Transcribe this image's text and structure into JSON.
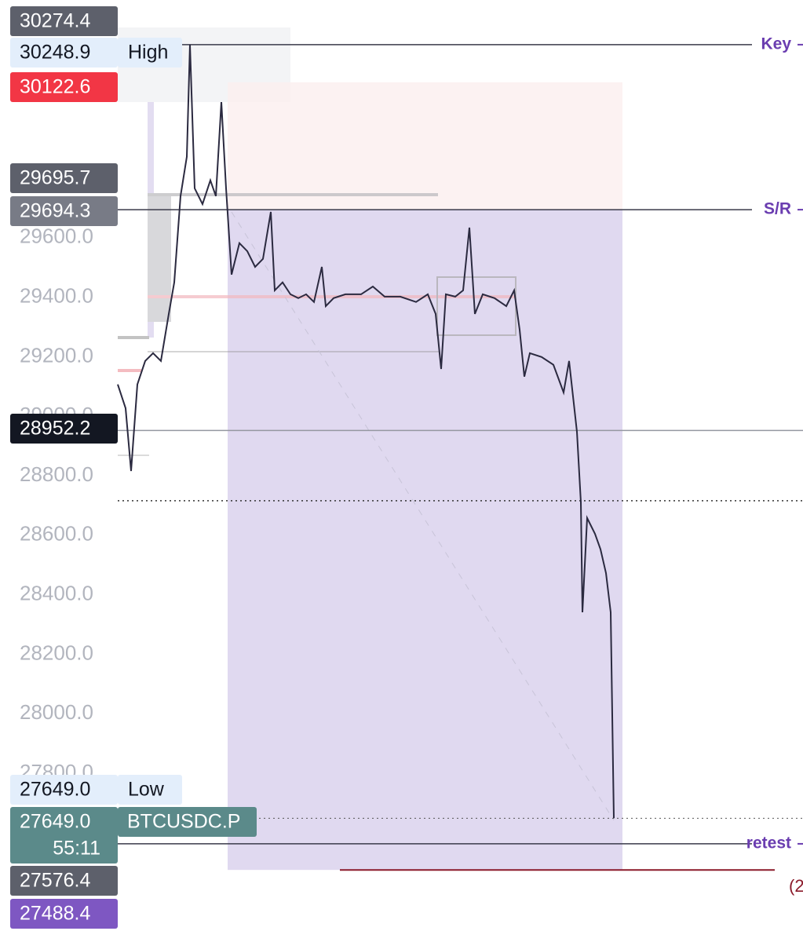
{
  "chart_data": {
    "type": "line",
    "symbol": "BTCUSDC.P",
    "countdown": "55:11",
    "color": "#2b2a40",
    "x": [
      0,
      10,
      17,
      25,
      35,
      45,
      55,
      65,
      72,
      80,
      88,
      92,
      98,
      108,
      118,
      125,
      132,
      138,
      145,
      155,
      165,
      175,
      185,
      195,
      200,
      210,
      220,
      230,
      240,
      250,
      260,
      265,
      275,
      290,
      310,
      325,
      340,
      360,
      380,
      395,
      405,
      412,
      418,
      430,
      440,
      448,
      455,
      465,
      480,
      495,
      505,
      512,
      518,
      525,
      540,
      555,
      568,
      575,
      585,
      590,
      592,
      598,
      608,
      615,
      622,
      628,
      632
    ],
    "values": [
      29107,
      29027,
      28816,
      29107,
      29186,
      29212,
      29186,
      29344,
      29450,
      29740,
      29872,
      30249,
      29766,
      29713,
      29793,
      29740,
      30056,
      29766,
      29476,
      29582,
      29555,
      29502,
      29529,
      29687,
      29423,
      29450,
      29410,
      29397,
      29410,
      29384,
      29502,
      29370,
      29397,
      29410,
      29410,
      29436,
      29402,
      29402,
      29384,
      29410,
      29344,
      29159,
      29410,
      29402,
      29423,
      29634,
      29344,
      29410,
      29397,
      29370,
      29423,
      29291,
      29133,
      29212,
      29199,
      29173,
      29080,
      29186,
      28948,
      28711,
      28341,
      28658,
      28605,
      28553,
      28473,
      28341,
      27649
    ],
    "xlim": [
      -150,
      873
    ],
    "ylim": [
      27233,
      30399
    ],
    "yticks": [
      {
        "value": 29600,
        "label": "29600.0"
      },
      {
        "value": 29400,
        "label": "29400.0"
      },
      {
        "value": 29200,
        "label": "29200.0"
      },
      {
        "value": 29000,
        "label": "29000.0"
      },
      {
        "value": 28800,
        "label": "28800.0"
      },
      {
        "value": 28600,
        "label": "28600.0"
      },
      {
        "value": 28400,
        "label": "28400.0"
      },
      {
        "value": 28200,
        "label": "28200.0"
      },
      {
        "value": 28000,
        "label": "28000.0"
      },
      {
        "value": 27800,
        "label": "27800.0"
      }
    ],
    "price_tags": [
      {
        "value": 30274.4,
        "label": "30274.4"
      },
      {
        "value": 30248.9,
        "label": "30248.9",
        "text": "High"
      },
      {
        "value": 30122.6,
        "label": "30122.6"
      },
      {
        "value": 29695.7,
        "label": "29695.7"
      },
      {
        "value": 29694.3,
        "label": "29694.3"
      },
      {
        "value": 28952.2,
        "label": "28952.2"
      },
      {
        "value": 27649.0,
        "label": "27649.0",
        "text": "Low"
      },
      {
        "value": 27649.0,
        "label": "27649.0"
      },
      {
        "value": 27576.4,
        "label": "27576.4"
      },
      {
        "value": 27488.4,
        "label": "27488.4"
      }
    ],
    "annotations": [
      {
        "text": "Key",
        "value": 30248.9
      },
      {
        "text": "S/R",
        "value": 29694.3
      },
      {
        "text": "retest",
        "value": 27563
      }
    ],
    "dotted_levels": [
      28716
    ],
    "cutoff_text": "(2"
  }
}
